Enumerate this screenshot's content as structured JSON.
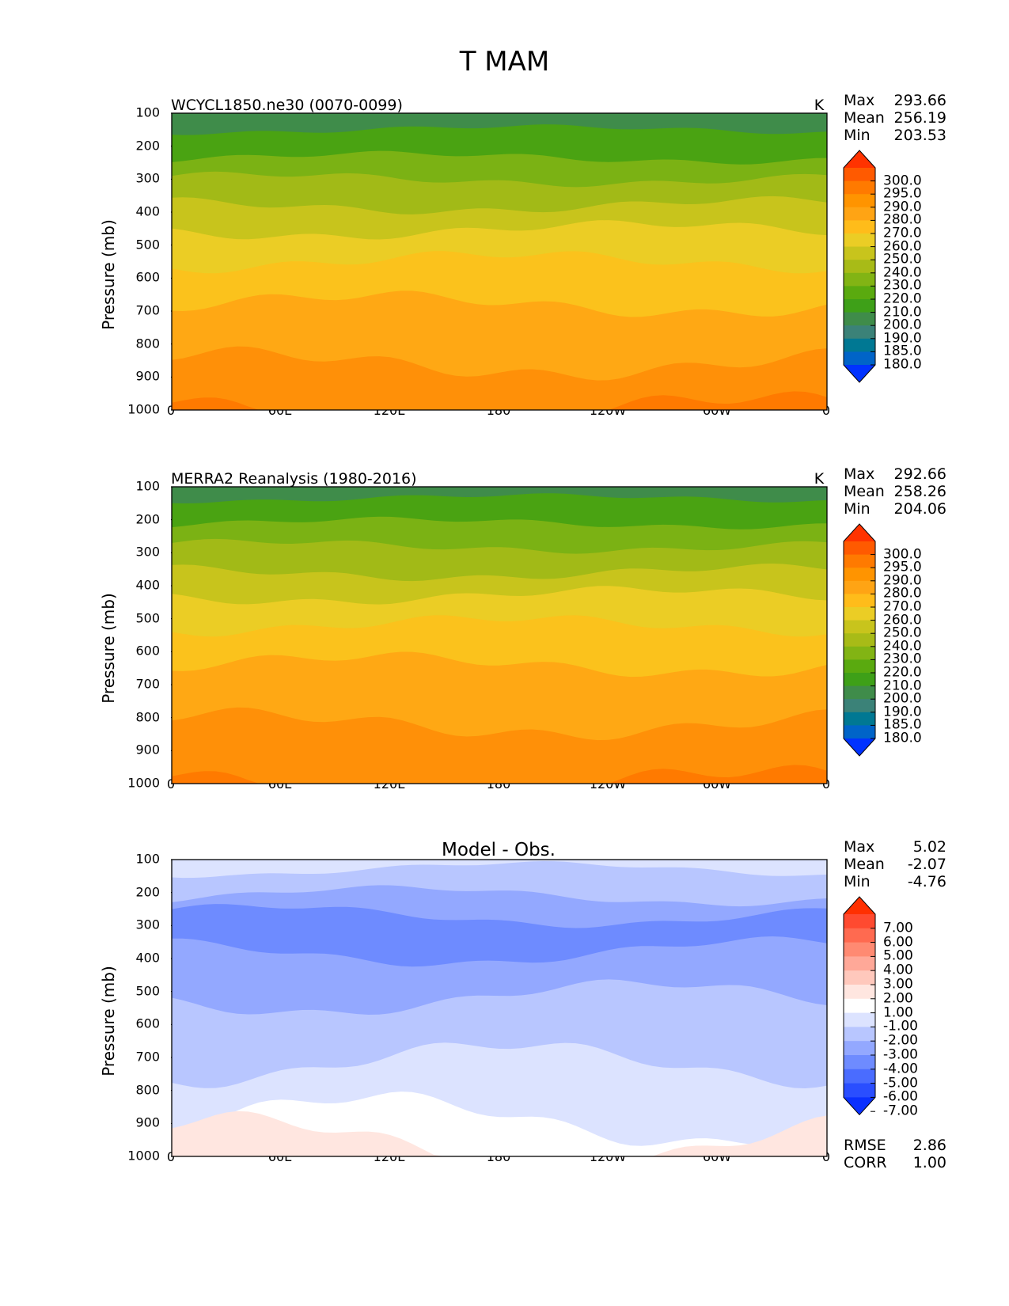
{
  "figure_title": "T MAM",
  "chart_data": [
    {
      "type": "contour",
      "title": "WCYCL1850.ne30 (0070-0099)",
      "units": "K",
      "ylabel": "Pressure (mb)",
      "y_ticks": [
        "100",
        "200",
        "300",
        "400",
        "500",
        "600",
        "700",
        "800",
        "900",
        "1000"
      ],
      "x_ticks": [
        "0",
        "60E",
        "120E",
        "180",
        "120W",
        "60W",
        "0"
      ],
      "ylim": [
        1000,
        100
      ],
      "xlim": [
        0,
        360
      ],
      "stats": [
        {
          "label": "Max",
          "value": "293.66"
        },
        {
          "label": "Mean",
          "value": "256.19"
        },
        {
          "label": "Min",
          "value": "203.53"
        }
      ],
      "colorbar_levels": [
        "300.0",
        "295.0",
        "290.0",
        "280.0",
        "270.0",
        "260.0",
        "250.0",
        "240.0",
        "230.0",
        "220.0",
        "210.0",
        "200.0",
        "190.0",
        "185.0",
        "180.0"
      ],
      "colorbar_colors": [
        "#ff3300",
        "#ff5a00",
        "#ff7a00",
        "#ff9400",
        "#ffa414",
        "#ffbc1a",
        "#ebcd25",
        "#c8c41c",
        "#a8bb17",
        "#82b414",
        "#5aaa0f",
        "#3ea018",
        "#3f8c4a",
        "#3b8278",
        "#007893",
        "#0064c8",
        "#0032ff"
      ],
      "bands": [
        {
          "p": 100,
          "t": 210,
          "color": "#3f8c4a"
        },
        {
          "p": 150,
          "t": 215,
          "color": "#4aa312"
        },
        {
          "p": 235,
          "t": 225,
          "color": "#7bb214"
        },
        {
          "p": 300,
          "t": 235,
          "color": "#a2ba17"
        },
        {
          "p": 380,
          "t": 245,
          "color": "#c8c41c"
        },
        {
          "p": 455,
          "t": 255,
          "color": "#ebcd25"
        },
        {
          "p": 550,
          "t": 265,
          "color": "#fbc21c"
        },
        {
          "p": 680,
          "t": 275,
          "color": "#ffa814"
        },
        {
          "p": 860,
          "t": 285,
          "color": "#ff9008"
        },
        {
          "p": 1000,
          "t": 290,
          "color": "#ff7a00"
        }
      ]
    },
    {
      "type": "contour",
      "title": "MERRA2 Reanalysis (1980-2016)",
      "units": "K",
      "ylabel": "Pressure (mb)",
      "y_ticks": [
        "100",
        "200",
        "300",
        "400",
        "500",
        "600",
        "700",
        "800",
        "900",
        "1000"
      ],
      "x_ticks": [
        "0",
        "60E",
        "120E",
        "180",
        "120W",
        "60W",
        "0"
      ],
      "ylim": [
        1000,
        100
      ],
      "xlim": [
        0,
        360
      ],
      "stats": [
        {
          "label": "Max",
          "value": "292.66"
        },
        {
          "label": "Mean",
          "value": "258.26"
        },
        {
          "label": "Min",
          "value": "204.06"
        }
      ],
      "colorbar_levels": [
        "300.0",
        "295.0",
        "290.0",
        "280.0",
        "270.0",
        "260.0",
        "250.0",
        "240.0",
        "230.0",
        "220.0",
        "210.0",
        "200.0",
        "190.0",
        "185.0",
        "180.0"
      ],
      "colorbar_colors": [
        "#ff3300",
        "#ff5a00",
        "#ff7a00",
        "#ff9400",
        "#ffa414",
        "#ffbc1a",
        "#ebcd25",
        "#c8c41c",
        "#a8bb17",
        "#82b414",
        "#5aaa0f",
        "#3ea018",
        "#3f8c4a",
        "#3b8278",
        "#007893",
        "#0064c8",
        "#0032ff"
      ],
      "bands": [
        {
          "p": 100,
          "t": 210,
          "color": "#3f8c4a"
        },
        {
          "p": 135,
          "t": 215,
          "color": "#4aa312"
        },
        {
          "p": 210,
          "t": 225,
          "color": "#7bb214"
        },
        {
          "p": 280,
          "t": 235,
          "color": "#a2ba17"
        },
        {
          "p": 360,
          "t": 245,
          "color": "#c8c41c"
        },
        {
          "p": 430,
          "t": 255,
          "color": "#ebcd25"
        },
        {
          "p": 520,
          "t": 265,
          "color": "#fbc21c"
        },
        {
          "p": 640,
          "t": 275,
          "color": "#ffa814"
        },
        {
          "p": 820,
          "t": 285,
          "color": "#ff9008"
        },
        {
          "p": 1000,
          "t": 290,
          "color": "#ff7a00"
        }
      ]
    },
    {
      "type": "contour",
      "title": "Model - Obs.",
      "units": "",
      "ylabel": "Pressure (mb)",
      "y_ticks": [
        "100",
        "200",
        "300",
        "400",
        "500",
        "600",
        "700",
        "800",
        "900",
        "1000"
      ],
      "x_ticks": [
        "0",
        "60E",
        "120E",
        "180",
        "120W",
        "60W",
        "0"
      ],
      "ylim": [
        1000,
        100
      ],
      "xlim": [
        0,
        360
      ],
      "stats": [
        {
          "label": "Max",
          "value": "5.02"
        },
        {
          "label": "Mean",
          "value": "-2.07"
        },
        {
          "label": "Min",
          "value": "-4.76"
        }
      ],
      "colorbar_levels": [
        "7.00",
        "6.00",
        "5.00",
        "4.00",
        "3.00",
        "2.00",
        "1.00",
        "-1.00",
        "-2.00",
        "-3.00",
        "-4.00",
        "-5.00",
        "-6.00",
        "-7.00"
      ],
      "colorbar_colors": [
        "#ff3000",
        "#ff4a30",
        "#ff6a50",
        "#ff8a72",
        "#ffa898",
        "#ffc8bc",
        "#ffe6e0",
        "#ffffff",
        "#dce3ff",
        "#b8c6ff",
        "#93a8ff",
        "#6e8bff",
        "#4a6cff",
        "#2a4eff",
        "#0a30ff"
      ],
      "bottom_stats": [
        {
          "label": "RMSE",
          "value": "2.86"
        },
        {
          "label": "CORR",
          "value": "1.00"
        }
      ],
      "bands": [
        {
          "p": 100,
          "t": -2.5,
          "color": "#dce3ff"
        },
        {
          "p": 130,
          "t": -2.5,
          "color": "#b8c6ff"
        },
        {
          "p": 210,
          "t": -3.5,
          "color": "#93a8ff"
        },
        {
          "p": 270,
          "t": -4.5,
          "color": "#6e8bff"
        },
        {
          "p": 380,
          "t": -3.5,
          "color": "#93a8ff"
        },
        {
          "p": 520,
          "t": -2.5,
          "color": "#b8c6ff"
        },
        {
          "p": 720,
          "t": -1.5,
          "color": "#dce3ff"
        },
        {
          "p": 890,
          "t": 0,
          "color": "#ffffff"
        },
        {
          "p": 960,
          "t": 1.5,
          "color": "#ffe6e0"
        }
      ]
    }
  ]
}
